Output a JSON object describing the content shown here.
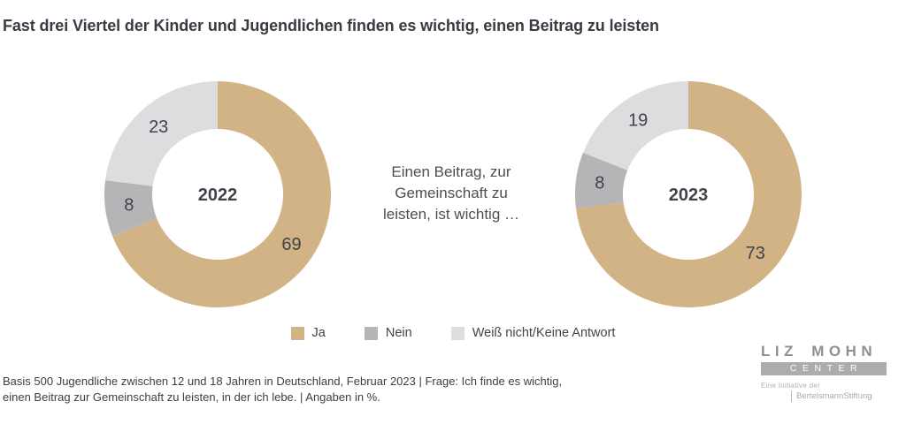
{
  "title": "Fast drei Viertel der Kinder und Jugendlichen finden es wichtig, einen Beitrag zu leisten",
  "center_note": {
    "lines": [
      "Einen Beitrag, zur",
      "Gemeinschaft zu",
      "leisten, ist wichtig …"
    ]
  },
  "chart_data": [
    {
      "type": "pie",
      "subtype": "donut",
      "center_label": "2022",
      "categories": [
        "Ja",
        "Nein",
        "Weiß nicht/Keine Antwort"
      ],
      "values": [
        69,
        8,
        23
      ],
      "colors": [
        "#d2b385",
        "#b5b5b7",
        "#dddddf"
      ],
      "unit": "%",
      "start_angle_deg": 0,
      "direction": "clockwise",
      "data_labels": true,
      "legend_position": "bottom"
    },
    {
      "type": "pie",
      "subtype": "donut",
      "center_label": "2023",
      "categories": [
        "Ja",
        "Nein",
        "Weiß nicht/Keine Antwort"
      ],
      "values": [
        73,
        8,
        19
      ],
      "colors": [
        "#d2b385",
        "#b5b5b7",
        "#dddddf"
      ],
      "unit": "%",
      "start_angle_deg": 0,
      "direction": "clockwise",
      "data_labels": true,
      "legend_position": "bottom"
    }
  ],
  "legend": {
    "items": [
      {
        "label": "Ja",
        "color": "#d2b385"
      },
      {
        "label": "Nein",
        "color": "#b5b5b7"
      },
      {
        "label": "Weiß nicht/Keine Antwort",
        "color": "#dddddf"
      }
    ]
  },
  "footer": {
    "lines": [
      "Basis 500 Jugendliche zwischen 12 und 18 Jahren in Deutschland, Februar 2023 | Frage: Ich finde es wichtig,",
      "einen Beitrag zur Gemeinschaft zu leisten, in der ich lebe. | Angaben in %."
    ]
  },
  "logo": {
    "name": "LIZ MOHN",
    "center": "CENTER",
    "initiative": "Eine Initiative der",
    "foundation": "BertelsmannStiftung"
  },
  "colors": {
    "ja": "#d2b385",
    "nein": "#b5b5b7",
    "weiss_nicht": "#dddddf",
    "text_dark": "#3f444a",
    "logo_gray": "#909090"
  }
}
